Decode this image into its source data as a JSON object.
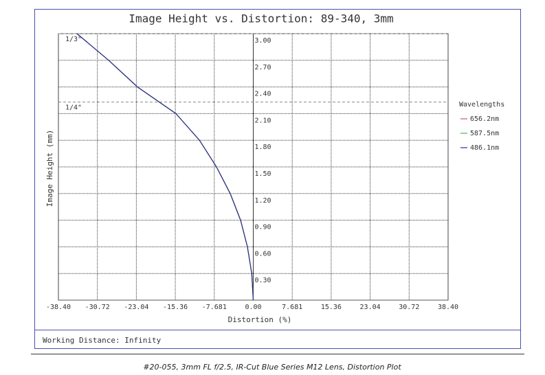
{
  "chart_data": {
    "type": "line",
    "title": "Image Height vs. Distortion: 89-340, 3mm",
    "x_label": "Distortion (%)",
    "y_label": "Image Height (mm)",
    "heights": [
      0,
      0.3,
      0.6,
      0.9,
      1.2,
      1.5,
      1.8,
      2.1,
      2.4,
      2.7,
      3.0
    ],
    "series": [
      {
        "name": "656.2nm",
        "color": "#d9534f",
        "values": [
          0,
          -0.3,
          -1.15,
          -2.5,
          -4.54,
          -7.25,
          -10.6,
          -15.24,
          -22.82,
          -28.5,
          -34.74
        ]
      },
      {
        "name": "587.5nm",
        "color": "#4caf50",
        "values": [
          0,
          -0.3,
          -1.15,
          -2.5,
          -4.54,
          -7.25,
          -10.6,
          -15.24,
          -22.82,
          -28.5,
          -34.74
        ]
      },
      {
        "name": "486.1nm",
        "color": "#2b2f8f",
        "values": [
          0,
          -0.3,
          -1.15,
          -2.5,
          -4.54,
          -7.25,
          -10.6,
          -15.24,
          -22.82,
          -28.5,
          -34.74
        ]
      }
    ],
    "legend_title": "Wavelengths",
    "xlim": [
      -38.4,
      38.4
    ],
    "xticks": [
      {
        "value": -38.4,
        "label": "-38.40"
      },
      -30.72,
      -23.04,
      -15.36,
      -7.681,
      {
        "value": 0,
        "label": "0.00"
      },
      7.681,
      15.36,
      23.04,
      30.72,
      {
        "value": 38.4,
        "label": "38.40"
      }
    ],
    "ylim": [
      0,
      3.0
    ],
    "yticks": [
      {
        "value": 0.3,
        "label": "0.30"
      },
      {
        "value": 0.6,
        "label": "0.60"
      },
      {
        "value": 0.9,
        "label": "0.90"
      },
      {
        "value": 1.2,
        "label": "1.20"
      },
      {
        "value": 1.5,
        "label": "1.50"
      },
      {
        "value": 1.8,
        "label": "1.80"
      },
      {
        "value": 2.1,
        "label": "2.10"
      },
      {
        "value": 2.4,
        "label": "2.40"
      },
      {
        "value": 2.7,
        "label": "2.70"
      },
      {
        "value": 3.0,
        "label": "3.00"
      }
    ],
    "grid": true,
    "annotations": [
      {
        "text": "1/3\"",
        "value": 3.0
      },
      {
        "text": "1/4\"",
        "value": 2.23
      }
    ],
    "footer": "Working Distance: Infinity",
    "caption": "#20-055, 3mm FL f/2.5, IR-Cut Blue Series M12 Lens, Distortion Plot"
  }
}
